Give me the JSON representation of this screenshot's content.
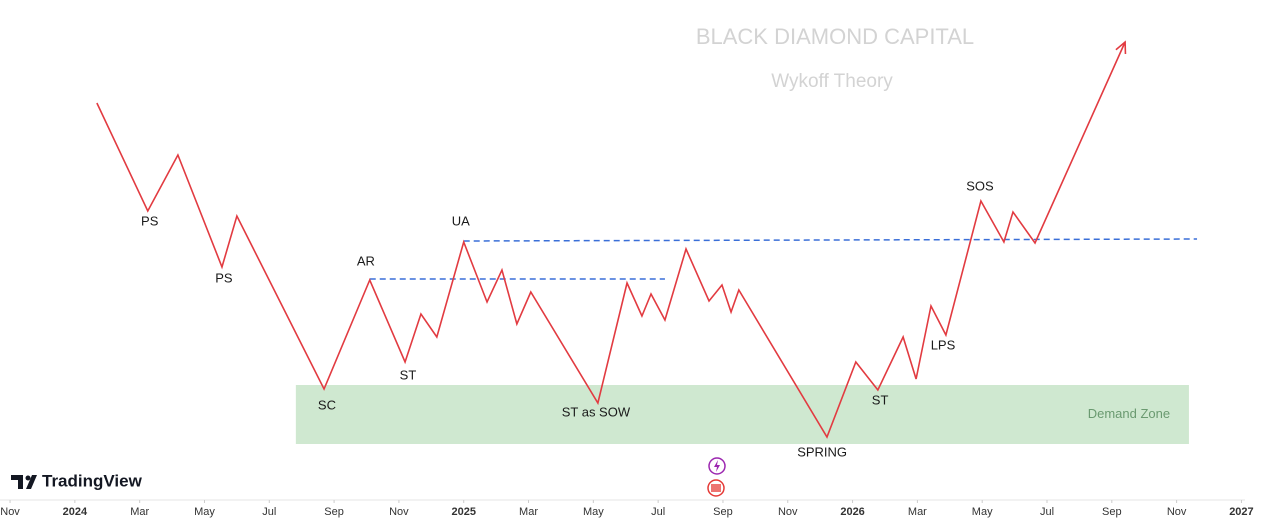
{
  "chart_data": {
    "type": "line",
    "title": "BLACK DIAMOND CAPITAL",
    "subtitle": "Wykoff Theory",
    "brand": "TradingView",
    "x": [
      0.68,
      2.25,
      3.18,
      4.54,
      5.0,
      7.69,
      9.1,
      10.19,
      10.68,
      11.17,
      12.0,
      12.72,
      13.18,
      13.64,
      14.07,
      16.14,
      17.04,
      17.5,
      17.78,
      18.21,
      18.86,
      19.57,
      19.97,
      20.25,
      20.49,
      23.21,
      24.1,
      24.78,
      25.56,
      25.96,
      26.42,
      26.88,
      27.96,
      28.67,
      28.95,
      29.63,
      32.41
    ],
    "series": [
      {
        "color": "#e23b41",
        "values": [
          79.4,
          57.8,
          69,
          46.6,
          56.8,
          22.2,
          44,
          27.6,
          37.2,
          32.6,
          51.6,
          39.6,
          46,
          35.2,
          41.6,
          19.4,
          43.4,
          36.8,
          41.2,
          36,
          50.2,
          39.8,
          43,
          37.6,
          42,
          12.6,
          27.6,
          22,
          32.6,
          24.2,
          38.8,
          33,
          59.8,
          51.6,
          57.6,
          51.4,
          91.6
        ]
      }
    ],
    "levels": [
      {
        "x": [
          9.1,
          18.21
        ],
        "y": [
          44.2,
          44.2
        ],
        "color": "#3a6fd8"
      },
      {
        "x": [
          12.0,
          34.63
        ],
        "y": [
          51.8,
          52.2
        ],
        "color": "#3a6fd8"
      }
    ],
    "zone": {
      "label": "Demand Zone",
      "x": [
        6.82,
        34.38
      ],
      "y": [
        11.2,
        23
      ],
      "color": "#cfe8d0"
    },
    "annotations": [
      {
        "text": "PS",
        "x": 2.31,
        "y": 55.6
      },
      {
        "text": "PS",
        "x": 4.6,
        "y": 44.2
      },
      {
        "text": "SC",
        "x": 7.78,
        "y": 18.8
      },
      {
        "text": "AR",
        "x": 8.98,
        "y": 47.6
      },
      {
        "text": "ST",
        "x": 10.28,
        "y": 24.8
      },
      {
        "text": "UA",
        "x": 11.91,
        "y": 55.6
      },
      {
        "text": "ST as SOW",
        "x": 16.08,
        "y": 17.4
      },
      {
        "text": "SPRING",
        "x": 23.06,
        "y": 9.4
      },
      {
        "text": "ST",
        "x": 24.85,
        "y": 19.8
      },
      {
        "text": "LPS",
        "x": 26.79,
        "y": 30.8
      },
      {
        "text": "SOS",
        "x": 27.93,
        "y": 62.6
      }
    ],
    "xlim": [
      -2.31,
      36.11
    ],
    "ylim": [
      0,
      100
    ],
    "xticks": [
      {
        "value": -2,
        "label": "Nov"
      },
      {
        "value": 0,
        "label": "2024"
      },
      {
        "value": 2,
        "label": "Mar"
      },
      {
        "value": 4,
        "label": "May"
      },
      {
        "value": 6,
        "label": "Jul"
      },
      {
        "value": 8,
        "label": "Sep"
      },
      {
        "value": 10,
        "label": "Nov"
      },
      {
        "value": 12,
        "label": "2025"
      },
      {
        "value": 14,
        "label": "Mar"
      },
      {
        "value": 16,
        "label": "May"
      },
      {
        "value": 18,
        "label": "Jul"
      },
      {
        "value": 20,
        "label": "Sep"
      },
      {
        "value": 22,
        "label": "Nov"
      },
      {
        "value": 24,
        "label": "2026"
      },
      {
        "value": 26,
        "label": "Mar"
      },
      {
        "value": 28,
        "label": "May"
      },
      {
        "value": 30,
        "label": "Jul"
      },
      {
        "value": 32,
        "label": "Sep"
      },
      {
        "value": 34,
        "label": "Nov"
      },
      {
        "value": 36,
        "label": "2027"
      }
    ]
  }
}
